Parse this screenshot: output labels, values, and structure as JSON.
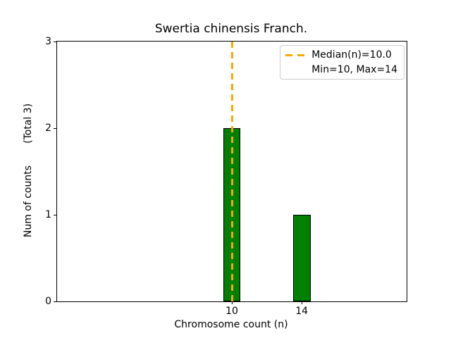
{
  "chart_data": {
    "type": "bar",
    "title": "Swertia chinensis Franch.",
    "xlabel": "Chromosome count (n)",
    "ylabel": "Num of counts       (Total 3)",
    "categories": [
      10,
      14
    ],
    "values": [
      2,
      1
    ],
    "bar_width": 1.0,
    "xlim": [
      0,
      20
    ],
    "ylim": [
      0,
      3
    ],
    "xticks": [
      {
        "value": 10,
        "label": "10"
      },
      {
        "value": 14,
        "label": "14"
      }
    ],
    "yticks": [
      {
        "value": 0,
        "label": "0"
      },
      {
        "value": 1,
        "label": "1"
      },
      {
        "value": 2,
        "label": "2"
      },
      {
        "value": 3,
        "label": "3"
      }
    ],
    "median_line": {
      "x": 10.0,
      "style": "dashed"
    },
    "grid": false,
    "legend": {
      "position": "upper right",
      "entries": [
        {
          "label": "Median(n)=10.0",
          "handle": "orange-dashed-line"
        },
        {
          "label": "Min=10, Max=14",
          "handle": "none"
        }
      ]
    },
    "colors": {
      "bar_fill": "#008000",
      "bar_edge": "#000000",
      "median_line": "#FFA500",
      "legend_border": "#cccccc",
      "text": "#000000",
      "background": "#ffffff"
    }
  }
}
